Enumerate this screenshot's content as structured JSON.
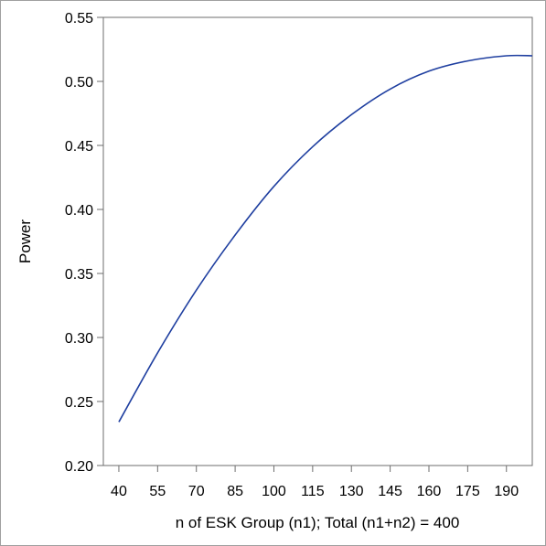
{
  "chart_data": {
    "type": "line",
    "title": "",
    "xlabel": "n of ESK Group (n1); Total (n1+n2) = 400",
    "ylabel": "Power",
    "xlim": [
      34,
      200
    ],
    "ylim": [
      0.2,
      0.55
    ],
    "x_ticks": [
      40,
      55,
      70,
      85,
      100,
      115,
      130,
      145,
      160,
      175,
      190
    ],
    "y_ticks": [
      0.2,
      0.25,
      0.3,
      0.35,
      0.4,
      0.45,
      0.5,
      0.55
    ],
    "x_tick_labels": [
      "40",
      "55",
      "70",
      "85",
      "100",
      "115",
      "130",
      "145",
      "160",
      "175",
      "190"
    ],
    "y_tick_labels": [
      "0.20",
      "0.25",
      "0.30",
      "0.35",
      "0.40",
      "0.45",
      "0.50",
      "0.55"
    ],
    "grid": false,
    "series": [
      {
        "color": "#1f3fa0",
        "x": [
          40,
          55,
          70,
          85,
          100,
          115,
          130,
          145,
          160,
          175,
          190,
          200
        ],
        "y": [
          0.234,
          0.288,
          0.337,
          0.38,
          0.418,
          0.449,
          0.474,
          0.494,
          0.508,
          0.516,
          0.52,
          0.52
        ]
      }
    ]
  }
}
